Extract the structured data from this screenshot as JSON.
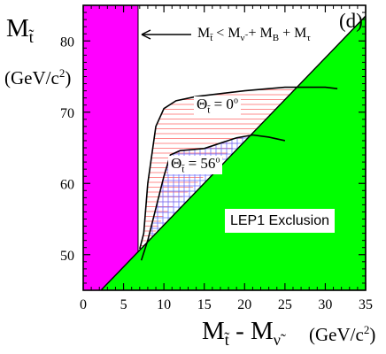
{
  "chart_data": {
    "type": "area",
    "panel_label": "(d)",
    "xlabel": "M̃t - M̃ν (GeV/c²)",
    "ylabel": "M̃t (GeV/c²)",
    "xlim": [
      0,
      35
    ],
    "ylim": [
      45,
      85
    ],
    "x_ticks": [
      0,
      5,
      10,
      15,
      20,
      25,
      30,
      35
    ],
    "y_ticks": [
      50,
      60,
      70,
      80
    ],
    "colors": {
      "magenta_band": "#ff00ff",
      "green_exclusion": "#00ff00",
      "red_hatch": "#ff6666",
      "blue_hatch": "#6f6fff",
      "line": "#000000"
    },
    "annotations": {
      "constraint": "M̃t < M̃ν + MB + Mτ",
      "theta_0": "Θt = 0°",
      "theta_56": "Θt = 56°",
      "exclusion": "LEP1 Exclusion"
    },
    "regions": [
      {
        "name": "magenta_band",
        "kind": "vertical_band",
        "x_range": [
          0,
          6.8
        ]
      },
      {
        "name": "green_exclusion",
        "kind": "polygon",
        "points": [
          [
            2.2,
            45
          ],
          [
            35,
            83.5
          ],
          [
            35,
            45
          ]
        ]
      },
      {
        "name": "theta_0",
        "kind": "contour",
        "points": [
          [
            7.0,
            50.8
          ],
          [
            7.5,
            53.0
          ],
          [
            8.0,
            60.0
          ],
          [
            9.0,
            68.0
          ],
          [
            10.0,
            70.5
          ],
          [
            11.5,
            71.6
          ],
          [
            14.0,
            72.2
          ],
          [
            20.0,
            73.0
          ],
          [
            25.0,
            73.5
          ],
          [
            30.0,
            73.5
          ],
          [
            31.5,
            73.3
          ]
        ]
      },
      {
        "name": "theta_56",
        "kind": "contour",
        "points": [
          [
            7.2,
            49.2
          ],
          [
            8.0,
            52.0
          ],
          [
            9.0,
            56.5
          ],
          [
            10.0,
            61.0
          ],
          [
            10.8,
            64.0
          ],
          [
            12.0,
            64.6
          ],
          [
            15.0,
            64.9
          ],
          [
            19.0,
            66.4
          ],
          [
            21.0,
            66.8
          ],
          [
            23.0,
            66.5
          ],
          [
            25.0,
            66.0
          ]
        ]
      }
    ]
  }
}
